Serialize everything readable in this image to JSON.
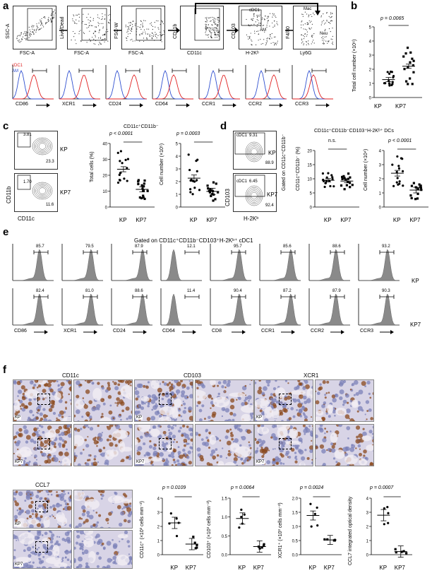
{
  "panels": {
    "a": "a",
    "b": "b",
    "c": "c",
    "d": "d",
    "e": "e",
    "f": "f"
  },
  "a": {
    "gates": [
      {
        "x": "FSC-A",
        "y": "SSC-A"
      },
      {
        "x": "FSC-A",
        "y": "Live/Dead"
      },
      {
        "x": "FSC-A",
        "y": "FSC-W"
      },
      {
        "x": "CD11c",
        "y": "CD11b"
      },
      {
        "x": "H-2Kᵇ",
        "y": "CD103",
        "labels": [
          "cDC1",
          "AM"
        ]
      },
      {
        "x": "Ly6G",
        "y": "F4/80",
        "labels": [
          "Mac",
          "Neu"
        ]
      }
    ],
    "legend": [
      "cDC1",
      "AM"
    ],
    "hist_markers": [
      "CD86",
      "XCR1",
      "CD24",
      "CD64",
      "CCR1",
      "CCR2",
      "CCR3"
    ]
  },
  "b": {
    "ylabel": "Total cell number (×10⁶)",
    "p": "p = 0.0065",
    "yticks": [
      "0",
      "1",
      "2",
      "3",
      "4",
      "5"
    ],
    "groups": [
      "KP",
      "KP7"
    ]
  },
  "c": {
    "gates_top": [
      "3.81",
      "23.3"
    ],
    "gates_bottom": [
      "1.70",
      "11.6"
    ],
    "row_labels": [
      "KP",
      "KP7"
    ],
    "xlabel": "CD11c",
    "ylabel": "CD11b",
    "title": "CD11c⁺CD11b⁻",
    "plot1": {
      "ylabel": "Total cells (%)",
      "p": "p < 0.0001",
      "yticks": [
        "0",
        "10",
        "20",
        "30",
        "40"
      ]
    },
    "plot2": {
      "ylabel": "Cell number (×10⁵)",
      "p": "p = 0.0003",
      "yticks": [
        "0",
        "1",
        "2",
        "3",
        "4",
        "5"
      ]
    },
    "groups": [
      "KP",
      "KP7"
    ]
  },
  "d": {
    "gates_top": [
      "cDC1",
      "9.31",
      "88.9"
    ],
    "gates_bottom": [
      "cDC1",
      "6.45",
      "92.4"
    ],
    "row_labels": [
      "KP",
      "KP7"
    ],
    "xlabel": "H-2Kᵇ",
    "ylabel": "CD103",
    "side": "Gated on CD11c⁺CD11b⁻",
    "title": "CD11c⁺CD11b⁻CD103⁺H-2Kᵇ⁺ DCs",
    "plot1": {
      "ylabel": "CD11c⁺CD11b⁻ (%)",
      "p": "n.s.",
      "yticks": [
        "0",
        "5",
        "10",
        "15",
        "20"
      ]
    },
    "plot2": {
      "ylabel": "Cell number (×10⁴)",
      "p": "p < 0.0001",
      "yticks": [
        "0",
        "1",
        "2",
        "3",
        "4"
      ]
    },
    "groups": [
      "KP",
      "KP7"
    ]
  },
  "e": {
    "title": "Gated on CD11c⁺CD11b⁻CD103⁺H-2Kᵇ⁺ cDC1",
    "row_labels": [
      "KP",
      "KP7"
    ],
    "markers": [
      "CD86",
      "XCR1",
      "CD24",
      "CD64",
      "CD8",
      "CCR1",
      "CCR2",
      "CCR3"
    ],
    "kp_values": [
      "85.7",
      "79.5",
      "87.9",
      "12.1",
      "95.7",
      "85.6",
      "88.6",
      "93.2"
    ],
    "kp7_values": [
      "82.4",
      "81.0",
      "88.6",
      "11.4",
      "90.4",
      "87.2",
      "87.9",
      "90.3"
    ]
  },
  "f": {
    "stains": [
      "CD11c",
      "CD103",
      "XCR1",
      "CCL7"
    ],
    "row_labels": [
      "KP",
      "KP7"
    ],
    "plots": [
      {
        "ylabel": "CD11c⁺ (×10³ cells mm⁻²)",
        "p": "p = 0.0109",
        "yticks": [
          "0",
          "1",
          "2",
          "3",
          "4"
        ]
      },
      {
        "ylabel": "CD103⁺ (×10³ cells mm⁻²)",
        "p": "p = 0.0064",
        "yticks": [
          "0.0",
          "0.5",
          "1.0",
          "1.5"
        ]
      },
      {
        "ylabel": "XCR1⁺ (×10³ cells mm⁻²)",
        "p": "p = 0.0024",
        "yticks": [
          "0.0",
          "0.5",
          "1.0",
          "1.5",
          "2.0"
        ]
      },
      {
        "ylabel": "CCL7 integrated optical density",
        "p": "p = 0.0007",
        "yticks": [
          "0",
          "1",
          "2",
          "3",
          "4"
        ]
      }
    ],
    "groups": [
      "KP",
      "KP7"
    ]
  },
  "colors": {
    "kp": "#000000",
    "kp7": "#000000",
    "hist_fill": "#8a8a8a",
    "red": "#e02020",
    "blue": "#3050d0",
    "ihc_brown": "#8b4a1e",
    "ihc_blue": "#9aa0c8"
  }
}
